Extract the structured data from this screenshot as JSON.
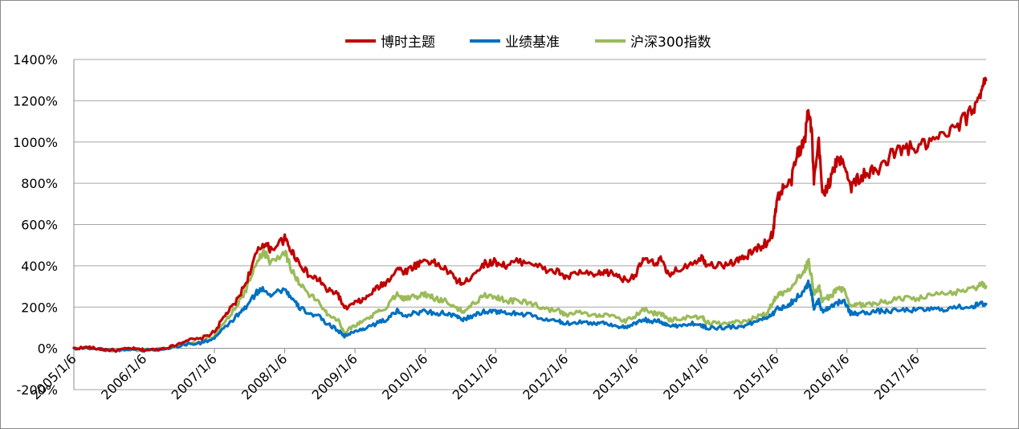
{
  "chart_data": {
    "type": "line",
    "title": "",
    "xlabel": "",
    "ylabel": "",
    "ylim": [
      -200,
      1400
    ],
    "ytick_step": 200,
    "ytick_labels": [
      "-200%",
      "0%",
      "200%",
      "400%",
      "600%",
      "800%",
      "1000%",
      "1200%",
      "1400%"
    ],
    "x_range": [
      2005.0,
      2017.98
    ],
    "x_ticks": [
      {
        "x": 2005.0,
        "label": "2005/1/6"
      },
      {
        "x": 2006.0,
        "label": "2006/1/6"
      },
      {
        "x": 2007.0,
        "label": "2007/1/6"
      },
      {
        "x": 2008.0,
        "label": "2008/1/6"
      },
      {
        "x": 2009.0,
        "label": "2009/1/6"
      },
      {
        "x": 2010.0,
        "label": "2010/1/6"
      },
      {
        "x": 2011.0,
        "label": "2011/1/6"
      },
      {
        "x": 2012.0,
        "label": "2012/1/6"
      },
      {
        "x": 2013.0,
        "label": "2013/1/6"
      },
      {
        "x": 2014.0,
        "label": "2014/1/6"
      },
      {
        "x": 2015.0,
        "label": "2015/1/6"
      },
      {
        "x": 2016.0,
        "label": "2016/1/6"
      },
      {
        "x": 2017.0,
        "label": "2017/1/6"
      }
    ],
    "grid": "horizontal",
    "legend_position": "top-center",
    "series": [
      {
        "name": "博时主题",
        "color": "#c00000",
        "points": [
          [
            2005.0,
            0
          ],
          [
            2005.2,
            5
          ],
          [
            2005.4,
            -5
          ],
          [
            2005.6,
            -10
          ],
          [
            2005.8,
            0
          ],
          [
            2006.0,
            -8
          ],
          [
            2006.2,
            -5
          ],
          [
            2006.4,
            10
          ],
          [
            2006.6,
            40
          ],
          [
            2006.8,
            45
          ],
          [
            2007.0,
            80
          ],
          [
            2007.15,
            160
          ],
          [
            2007.3,
            220
          ],
          [
            2007.45,
            320
          ],
          [
            2007.6,
            460
          ],
          [
            2007.7,
            510
          ],
          [
            2007.8,
            480
          ],
          [
            2008.0,
            530
          ],
          [
            2008.1,
            470
          ],
          [
            2008.2,
            420
          ],
          [
            2008.35,
            350
          ],
          [
            2008.5,
            330
          ],
          [
            2008.6,
            280
          ],
          [
            2008.75,
            270
          ],
          [
            2008.85,
            190
          ],
          [
            2009.0,
            220
          ],
          [
            2009.15,
            240
          ],
          [
            2009.3,
            290
          ],
          [
            2009.45,
            320
          ],
          [
            2009.6,
            390
          ],
          [
            2009.7,
            370
          ],
          [
            2009.85,
            400
          ],
          [
            2010.0,
            430
          ],
          [
            2010.15,
            410
          ],
          [
            2010.3,
            380
          ],
          [
            2010.45,
            330
          ],
          [
            2010.55,
            310
          ],
          [
            2010.7,
            370
          ],
          [
            2010.85,
            410
          ],
          [
            2011.0,
            420
          ],
          [
            2011.15,
            400
          ],
          [
            2011.3,
            420
          ],
          [
            2011.5,
            420
          ],
          [
            2011.7,
            380
          ],
          [
            2011.9,
            370
          ],
          [
            2012.0,
            340
          ],
          [
            2012.2,
            370
          ],
          [
            2012.4,
            350
          ],
          [
            2012.55,
            370
          ],
          [
            2012.7,
            360
          ],
          [
            2012.85,
            330
          ],
          [
            2013.0,
            360
          ],
          [
            2013.1,
            430
          ],
          [
            2013.25,
            410
          ],
          [
            2013.35,
            430
          ],
          [
            2013.45,
            360
          ],
          [
            2013.6,
            380
          ],
          [
            2013.8,
            420
          ],
          [
            2013.95,
            440
          ],
          [
            2014.0,
            410
          ],
          [
            2014.2,
            400
          ],
          [
            2014.4,
            420
          ],
          [
            2014.55,
            440
          ],
          [
            2014.7,
            480
          ],
          [
            2014.85,
            510
          ],
          [
            2014.95,
            560
          ],
          [
            2015.0,
            720
          ],
          [
            2015.1,
            780
          ],
          [
            2015.2,
            800
          ],
          [
            2015.3,
            950
          ],
          [
            2015.4,
            1000
          ],
          [
            2015.45,
            1180
          ],
          [
            2015.5,
            1050
          ],
          [
            2015.53,
            800
          ],
          [
            2015.6,
            1000
          ],
          [
            2015.65,
            750
          ],
          [
            2015.75,
            800
          ],
          [
            2015.85,
            900
          ],
          [
            2015.95,
            920
          ],
          [
            2016.05,
            780
          ],
          [
            2016.15,
            820
          ],
          [
            2016.3,
            850
          ],
          [
            2016.45,
            860
          ],
          [
            2016.6,
            930
          ],
          [
            2016.8,
            970
          ],
          [
            2017.0,
            970
          ],
          [
            2017.2,
            1000
          ],
          [
            2017.4,
            1030
          ],
          [
            2017.6,
            1080
          ],
          [
            2017.8,
            1160
          ],
          [
            2017.9,
            1250
          ],
          [
            2017.98,
            1300
          ]
        ]
      },
      {
        "name": "业绩基准",
        "color": "#0070c0",
        "points": [
          [
            2005.0,
            0
          ],
          [
            2005.2,
            2
          ],
          [
            2005.4,
            -5
          ],
          [
            2005.6,
            -10
          ],
          [
            2005.8,
            -3
          ],
          [
            2006.0,
            -8
          ],
          [
            2006.2,
            -5
          ],
          [
            2006.4,
            5
          ],
          [
            2006.6,
            20
          ],
          [
            2006.8,
            25
          ],
          [
            2007.0,
            50
          ],
          [
            2007.15,
            100
          ],
          [
            2007.3,
            150
          ],
          [
            2007.45,
            200
          ],
          [
            2007.6,
            270
          ],
          [
            2007.7,
            290
          ],
          [
            2007.8,
            260
          ],
          [
            2008.0,
            290
          ],
          [
            2008.1,
            240
          ],
          [
            2008.2,
            200
          ],
          [
            2008.35,
            170
          ],
          [
            2008.5,
            150
          ],
          [
            2008.6,
            120
          ],
          [
            2008.75,
            90
          ],
          [
            2008.85,
            60
          ],
          [
            2009.0,
            80
          ],
          [
            2009.15,
            100
          ],
          [
            2009.3,
            120
          ],
          [
            2009.45,
            140
          ],
          [
            2009.6,
            180
          ],
          [
            2009.7,
            160
          ],
          [
            2009.85,
            170
          ],
          [
            2010.0,
            180
          ],
          [
            2010.15,
            170
          ],
          [
            2010.3,
            170
          ],
          [
            2010.45,
            150
          ],
          [
            2010.55,
            140
          ],
          [
            2010.7,
            160
          ],
          [
            2010.85,
            180
          ],
          [
            2011.0,
            180
          ],
          [
            2011.15,
            170
          ],
          [
            2011.3,
            170
          ],
          [
            2011.5,
            160
          ],
          [
            2011.7,
            140
          ],
          [
            2011.9,
            130
          ],
          [
            2012.0,
            120
          ],
          [
            2012.2,
            130
          ],
          [
            2012.4,
            120
          ],
          [
            2012.55,
            125
          ],
          [
            2012.7,
            110
          ],
          [
            2012.85,
            100
          ],
          [
            2013.0,
            120
          ],
          [
            2013.1,
            140
          ],
          [
            2013.25,
            130
          ],
          [
            2013.35,
            130
          ],
          [
            2013.45,
            110
          ],
          [
            2013.6,
            110
          ],
          [
            2013.8,
            120
          ],
          [
            2013.95,
            110
          ],
          [
            2014.0,
            100
          ],
          [
            2014.2,
            100
          ],
          [
            2014.4,
            105
          ],
          [
            2014.55,
            110
          ],
          [
            2014.7,
            130
          ],
          [
            2014.85,
            150
          ],
          [
            2014.95,
            170
          ],
          [
            2015.0,
            190
          ],
          [
            2015.1,
            200
          ],
          [
            2015.2,
            220
          ],
          [
            2015.3,
            250
          ],
          [
            2015.4,
            280
          ],
          [
            2015.45,
            320
          ],
          [
            2015.5,
            260
          ],
          [
            2015.53,
            200
          ],
          [
            2015.6,
            230
          ],
          [
            2015.65,
            180
          ],
          [
            2015.75,
            200
          ],
          [
            2015.85,
            220
          ],
          [
            2015.95,
            230
          ],
          [
            2016.05,
            170
          ],
          [
            2016.15,
            170
          ],
          [
            2016.3,
            175
          ],
          [
            2016.45,
            180
          ],
          [
            2016.6,
            180
          ],
          [
            2016.8,
            185
          ],
          [
            2017.0,
            185
          ],
          [
            2017.2,
            190
          ],
          [
            2017.4,
            190
          ],
          [
            2017.6,
            200
          ],
          [
            2017.8,
            205
          ],
          [
            2017.9,
            215
          ],
          [
            2017.98,
            215
          ]
        ]
      },
      {
        "name": "沪深300指数",
        "color": "#9bbb59",
        "points": [
          [
            2005.0,
            0
          ],
          [
            2005.2,
            2
          ],
          [
            2005.4,
            -5
          ],
          [
            2005.6,
            -12
          ],
          [
            2005.8,
            -5
          ],
          [
            2006.0,
            -10
          ],
          [
            2006.2,
            -5
          ],
          [
            2006.4,
            8
          ],
          [
            2006.6,
            25
          ],
          [
            2006.8,
            30
          ],
          [
            2007.0,
            60
          ],
          [
            2007.15,
            130
          ],
          [
            2007.3,
            200
          ],
          [
            2007.45,
            280
          ],
          [
            2007.6,
            420
          ],
          [
            2007.7,
            470
          ],
          [
            2007.8,
            420
          ],
          [
            2008.0,
            470
          ],
          [
            2008.1,
            380
          ],
          [
            2008.2,
            320
          ],
          [
            2008.35,
            260
          ],
          [
            2008.5,
            220
          ],
          [
            2008.6,
            170
          ],
          [
            2008.75,
            140
          ],
          [
            2008.85,
            80
          ],
          [
            2009.0,
            110
          ],
          [
            2009.15,
            140
          ],
          [
            2009.3,
            170
          ],
          [
            2009.45,
            200
          ],
          [
            2009.6,
            270
          ],
          [
            2009.7,
            240
          ],
          [
            2009.85,
            250
          ],
          [
            2010.0,
            260
          ],
          [
            2010.15,
            240
          ],
          [
            2010.3,
            230
          ],
          [
            2010.45,
            190
          ],
          [
            2010.55,
            180
          ],
          [
            2010.7,
            220
          ],
          [
            2010.85,
            260
          ],
          [
            2011.0,
            250
          ],
          [
            2011.15,
            230
          ],
          [
            2011.3,
            230
          ],
          [
            2011.5,
            220
          ],
          [
            2011.7,
            190
          ],
          [
            2011.9,
            180
          ],
          [
            2012.0,
            160
          ],
          [
            2012.2,
            175
          ],
          [
            2012.4,
            160
          ],
          [
            2012.55,
            165
          ],
          [
            2012.7,
            150
          ],
          [
            2012.85,
            130
          ],
          [
            2013.0,
            160
          ],
          [
            2013.1,
            190
          ],
          [
            2013.25,
            170
          ],
          [
            2013.35,
            170
          ],
          [
            2013.45,
            140
          ],
          [
            2013.6,
            140
          ],
          [
            2013.8,
            155
          ],
          [
            2013.95,
            145
          ],
          [
            2014.0,
            125
          ],
          [
            2014.2,
            120
          ],
          [
            2014.4,
            125
          ],
          [
            2014.55,
            130
          ],
          [
            2014.7,
            150
          ],
          [
            2014.85,
            170
          ],
          [
            2014.95,
            220
          ],
          [
            2015.0,
            260
          ],
          [
            2015.1,
            270
          ],
          [
            2015.2,
            300
          ],
          [
            2015.3,
            340
          ],
          [
            2015.4,
            380
          ],
          [
            2015.45,
            430
          ],
          [
            2015.5,
            340
          ],
          [
            2015.53,
            260
          ],
          [
            2015.6,
            300
          ],
          [
            2015.65,
            230
          ],
          [
            2015.75,
            250
          ],
          [
            2015.85,
            280
          ],
          [
            2015.95,
            290
          ],
          [
            2016.05,
            200
          ],
          [
            2016.15,
            210
          ],
          [
            2016.3,
            215
          ],
          [
            2016.45,
            220
          ],
          [
            2016.6,
            230
          ],
          [
            2016.8,
            245
          ],
          [
            2017.0,
            240
          ],
          [
            2017.2,
            255
          ],
          [
            2017.4,
            265
          ],
          [
            2017.6,
            275
          ],
          [
            2017.8,
            290
          ],
          [
            2017.9,
            310
          ],
          [
            2017.98,
            300
          ]
        ]
      }
    ]
  }
}
